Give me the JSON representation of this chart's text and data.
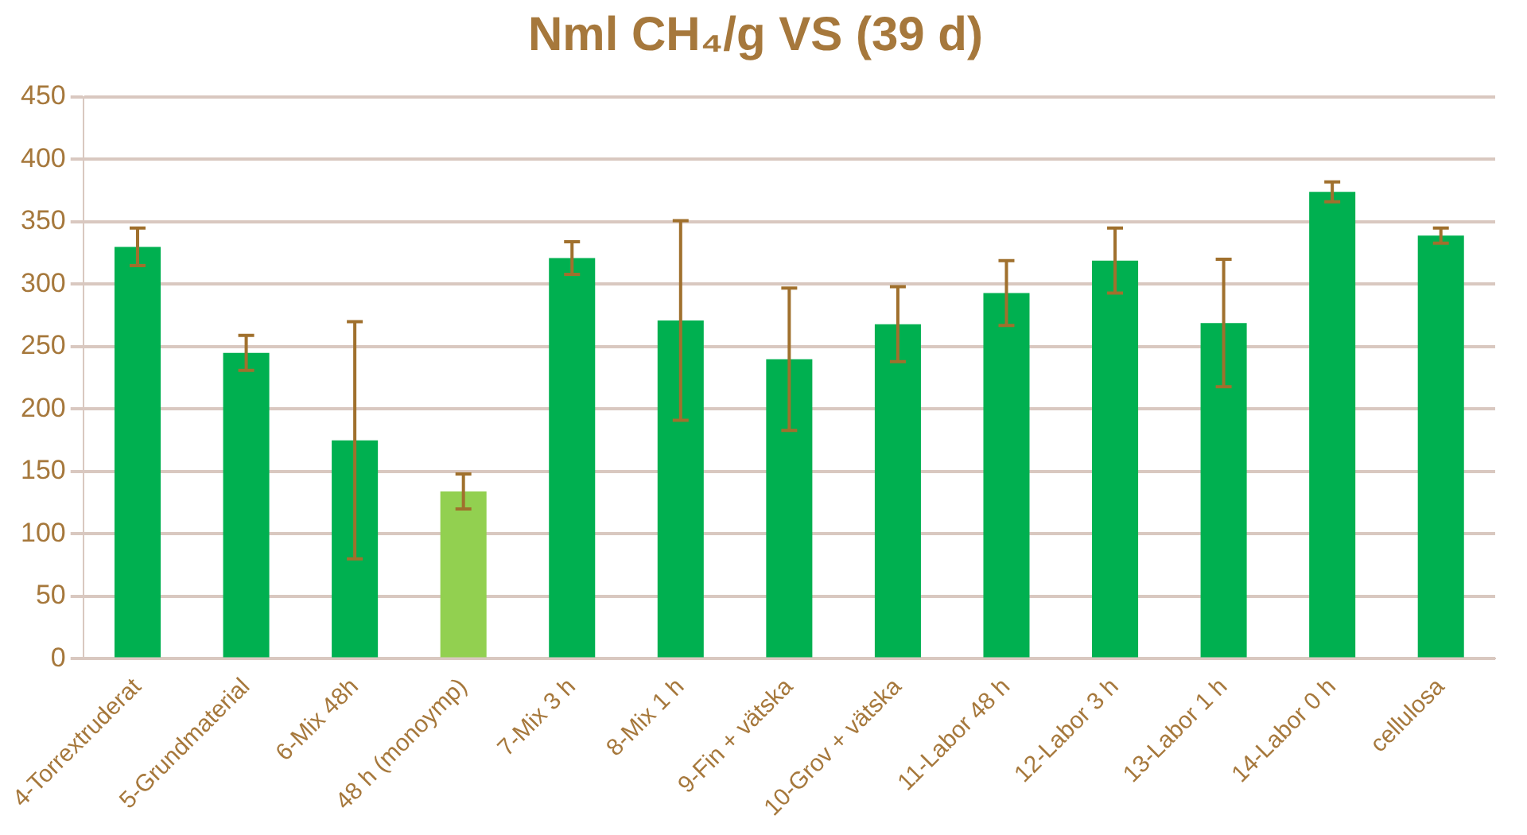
{
  "chart_data": {
    "type": "bar",
    "title": "Nml CH₄/g VS (39 d)",
    "categories": [
      "4-Torrextruderat",
      "5-Grundmaterial",
      "6-Mix 48h",
      "48 h (monoymp)",
      "7-Mix 3 h",
      "8-Mix 1 h",
      "9-Fin + vätska",
      "10-Grov + vätska",
      "11-Labor 48 h",
      "12-Labor 3 h",
      "13-Labor 1 h",
      "14-Labor 0 h",
      "cellulosa"
    ],
    "values": [
      330,
      245,
      175,
      134,
      321,
      271,
      240,
      268,
      293,
      319,
      269,
      374,
      339
    ],
    "errors": [
      15,
      14,
      95,
      14,
      13,
      80,
      57,
      30,
      26,
      26,
      51,
      8,
      6
    ],
    "colors": [
      "#00b050",
      "#00b050",
      "#00b050",
      "#92d050",
      "#00b050",
      "#00b050",
      "#00b050",
      "#00b050",
      "#00b050",
      "#00b050",
      "#00b050",
      "#00b050",
      "#00b050"
    ],
    "ylim": [
      0,
      450
    ],
    "yticks": [
      0,
      50,
      100,
      150,
      200,
      250,
      300,
      350,
      400,
      450
    ],
    "grid": "y",
    "legend": false
  }
}
